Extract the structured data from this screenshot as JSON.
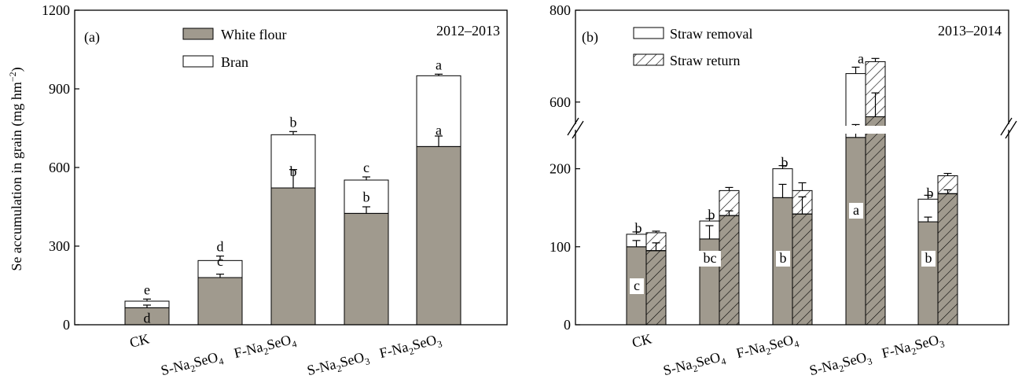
{
  "colors": {
    "flour": "#a09a8e",
    "bran": "#ffffff",
    "stroke": "#000000"
  },
  "chart_data": [
    {
      "type": "bar",
      "stacked": true,
      "panel_label": "(a)",
      "year_label": "2012–2013",
      "ylabel": "Se accumulation in grain (mg hm",
      "ylabel_sup": "−2",
      "ylabel_end": ")",
      "ylim": [
        0,
        1200
      ],
      "yticks": [
        "0",
        "300",
        "600",
        "900",
        "1200"
      ],
      "categories": [
        {
          "pre": "CK",
          "sub1": "",
          "mid": "",
          "sub2": ""
        },
        {
          "pre": "S-Na",
          "sub1": "2",
          "mid": "SeO",
          "sub2": "4"
        },
        {
          "pre": "F-Na",
          "sub1": "2",
          "mid": "SeO",
          "sub2": "4"
        },
        {
          "pre": "S-Na",
          "sub1": "2",
          "mid": "SeO",
          "sub2": "3"
        },
        {
          "pre": "F-Na",
          "sub1": "2",
          "mid": "SeO",
          "sub2": "3"
        }
      ],
      "legend": [
        {
          "name": "White flour",
          "swatch": "flour"
        },
        {
          "name": "Bran",
          "swatch": "bran"
        }
      ],
      "series": [
        {
          "name": "White flour",
          "values": [
            65,
            180,
            522,
            425,
            680
          ],
          "errors": [
            10,
            13,
            70,
            25,
            40
          ],
          "letters": [
            "d",
            "c",
            "b",
            "b",
            "a"
          ]
        },
        {
          "name": "Bran",
          "values": [
            25,
            65,
            203,
            127,
            270
          ],
          "errors": [
            8,
            17,
            12,
            12,
            6
          ],
          "letters": [
            "e",
            "d",
            "b",
            "c",
            "a"
          ]
        }
      ]
    },
    {
      "type": "bar",
      "stacked": true,
      "panel_label": "(b)",
      "year_label": "2013–2014",
      "ylim": [
        0,
        800
      ],
      "axis_break": [
        250,
        550
      ],
      "yticks": [
        {
          "label": "0",
          "v": 0
        },
        {
          "label": "100",
          "v": 100
        },
        {
          "label": "200",
          "v": 200
        },
        {
          "label": "600",
          "v": 600
        },
        {
          "label": "800",
          "v": 800
        }
      ],
      "categories": [
        {
          "pre": "CK",
          "sub1": "",
          "mid": "",
          "sub2": ""
        },
        {
          "pre": "S-Na",
          "sub1": "2",
          "mid": "SeO",
          "sub2": "4"
        },
        {
          "pre": "F-Na",
          "sub1": "2",
          "mid": "SeO",
          "sub2": "4"
        },
        {
          "pre": "S-Na",
          "sub1": "2",
          "mid": "SeO",
          "sub2": "3"
        },
        {
          "pre": "F-Na",
          "sub1": "2",
          "mid": "SeO",
          "sub2": "3"
        }
      ],
      "legend": [
        {
          "name": "Straw removal",
          "swatch": "plain"
        },
        {
          "name": "Straw return",
          "swatch": "hatch"
        }
      ],
      "series": [
        {
          "name": "Straw removal",
          "flour": [
            100,
            110,
            163,
            523,
            132
          ],
          "total": [
            116,
            133,
            200,
            662,
            161
          ],
          "flour_err": [
            8,
            17,
            17,
            28,
            6
          ],
          "total_err": [
            3,
            3,
            4,
            14,
            5
          ]
        },
        {
          "name": "Straw return",
          "flour": [
            95,
            140,
            142,
            568,
            168
          ],
          "total": [
            118,
            172,
            172,
            688,
            191
          ],
          "flour_err": [
            10,
            6,
            22,
            52,
            5
          ],
          "total_err": [
            2,
            4,
            10,
            7,
            3
          ]
        }
      ],
      "top_letters": [
        "b",
        "b",
        "b",
        "a",
        "b"
      ],
      "flour_letters": [
        "c",
        "bc",
        "b",
        "a",
        "b"
      ]
    }
  ]
}
